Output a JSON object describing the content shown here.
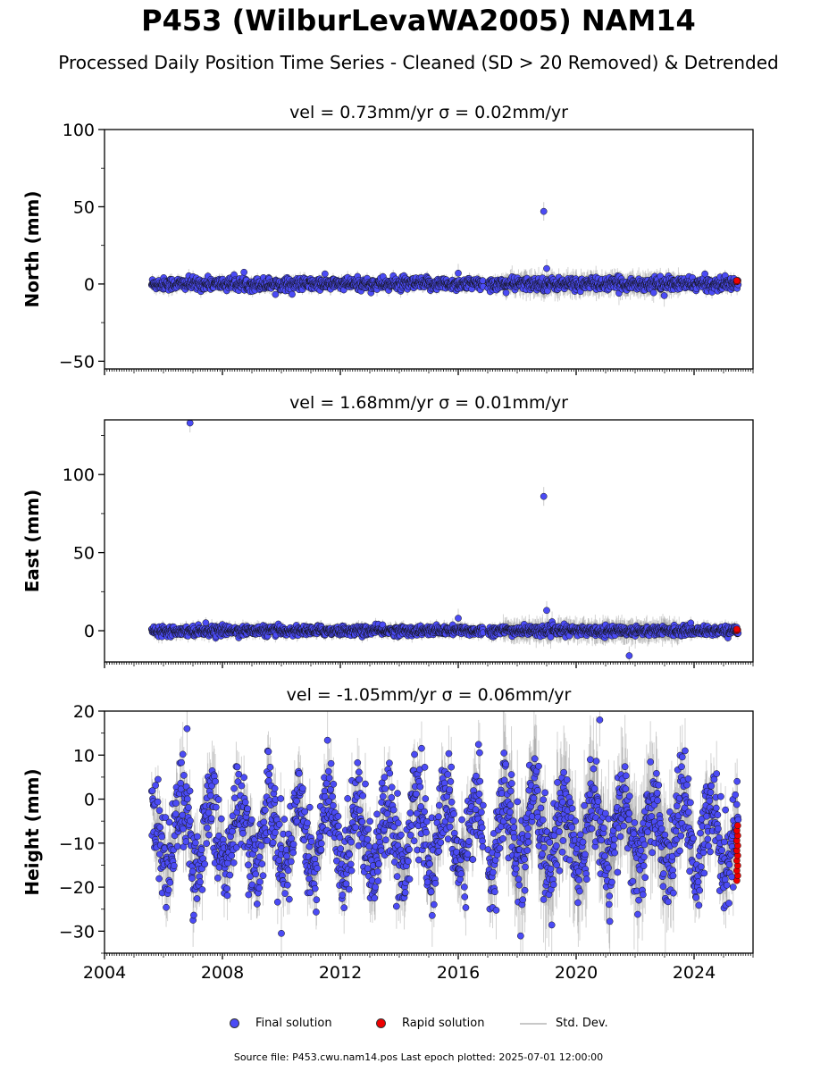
{
  "title": "P453 (WilburLevaWA2005) NAM14",
  "subtitle": "Processed Daily Position Time Series - Cleaned (SD > 20 Removed) & Detrended",
  "legend": {
    "final": "Final solution",
    "rapid": "Rapid solution",
    "std": "Std. Dev."
  },
  "source_note": "Source file: P453.cwu.nam14.pos  Last epoch plotted: 2025-07-01 12:00:00",
  "colors": {
    "final": "#4b4bf5",
    "rapid": "#ee0000",
    "std": "#808080"
  },
  "chart_data": [
    {
      "type": "scatter",
      "panel": "north",
      "title": "vel = 0.73mm/yr   σ = 0.02mm/yr",
      "ylabel": "North (mm)",
      "xlim": [
        2004,
        2026
      ],
      "ylim": [
        -55,
        100
      ],
      "yticks": [
        -50,
        0,
        50,
        100
      ],
      "ytick_labels": [
        "−50",
        "0",
        "50",
        "100"
      ],
      "data_span": [
        2005.6,
        2025.5
      ],
      "gap": [
        2016.85,
        2017.0
      ],
      "scatter_amp": 2,
      "seasonal_amp": 0,
      "rapid_range": [
        1.5,
        2.2
      ],
      "std_base": 3,
      "outliers": [
        {
          "x": 2018.9,
          "y": 47
        },
        {
          "x": 2016.0,
          "y": 7
        },
        {
          "x": 2019.0,
          "y": 10
        }
      ]
    },
    {
      "type": "scatter",
      "panel": "east",
      "title": "vel = 1.68mm/yr   σ = 0.01mm/yr",
      "ylabel": "East (mm)",
      "xlim": [
        2004,
        2026
      ],
      "ylim": [
        -20,
        135
      ],
      "yticks": [
        0,
        50,
        100
      ],
      "ytick_labels": [
        "0",
        "50",
        "100"
      ],
      "data_span": [
        2005.6,
        2025.5
      ],
      "gap": [
        2016.85,
        2017.0
      ],
      "scatter_amp": 1.5,
      "seasonal_amp": 0,
      "rapid_range": [
        0,
        1
      ],
      "std_base": 3,
      "outliers": [
        {
          "x": 2006.9,
          "y": 133
        },
        {
          "x": 2018.9,
          "y": 86
        },
        {
          "x": 2016.0,
          "y": 8
        },
        {
          "x": 2019.0,
          "y": 13
        },
        {
          "x": 2021.8,
          "y": -16
        }
      ]
    },
    {
      "type": "scatter",
      "panel": "height",
      "title": "vel = -1.05mm/yr   σ = 0.06mm/yr",
      "ylabel": "Height (mm)",
      "xlim": [
        2004,
        2026
      ],
      "ylim": [
        -35,
        20
      ],
      "yticks": [
        -30,
        -20,
        -10,
        0,
        10,
        20
      ],
      "ytick_labels": [
        "−30",
        "−20",
        "−10",
        "0",
        "10",
        "20"
      ],
      "xticks": [
        2004,
        2008,
        2012,
        2016,
        2020,
        2024
      ],
      "xtick_labels": [
        "2004",
        "2008",
        "2012",
        "2016",
        "2020",
        "2024"
      ],
      "data_span": [
        2005.6,
        2025.5
      ],
      "gap": [
        2016.85,
        2017.0
      ],
      "scatter_amp": 5,
      "seasonal_amp": 8,
      "mean": -8,
      "rapid_range": [
        -18.5,
        -6
      ],
      "std_base": 5,
      "outliers": [
        {
          "x": 2010.0,
          "y": -30.5
        },
        {
          "x": 2020.8,
          "y": 18
        },
        {
          "x": 2006.8,
          "y": 16
        }
      ]
    }
  ]
}
